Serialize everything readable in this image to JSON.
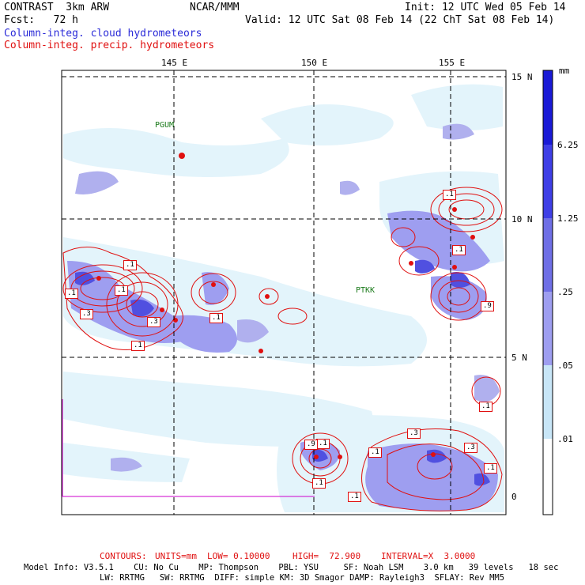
{
  "header": {
    "model_name": "CONTRAST  3km ARW",
    "org": "NCAR/MMM",
    "init": "Init: 12 UTC Wed 05 Feb 14",
    "fcst": "Fcst:   72 h",
    "valid": "Valid: 12 UTC Sat 08 Feb 14 (22 ChT Sat 08 Feb 14)",
    "field_cloud": "Column-integ. cloud hydrometeors",
    "field_precip": "Column-integ. precip. hydrometeors"
  },
  "map": {
    "lon_labels": [
      "145 E",
      "150 E",
      "155 E"
    ],
    "lat_labels": [
      "15 N",
      "10 N",
      "5 N",
      "0"
    ],
    "stations": [
      "PGUM",
      "PTKK"
    ],
    "contour_labels": [
      ".1",
      ".1",
      ".1",
      ".3",
      ".3",
      ".1",
      ".1",
      ".1",
      ".1",
      ".9",
      ".1",
      ".3",
      ".1",
      ".3",
      ".1",
      ".1",
      ".1",
      ".9",
      ".1"
    ]
  },
  "colorbar": {
    "unit": "mm",
    "levels": [
      "6.25",
      "1.25",
      ".25",
      ".05",
      ".01"
    ],
    "colors": [
      "#1a1ad6",
      "#3f3fe6",
      "#6f6fe6",
      "#9e9ef0",
      "#c8e6f7",
      "#e8f7fb",
      "#ffffff"
    ]
  },
  "footer": {
    "contours_label": "CONTOURS:",
    "units": "UNITS=mm",
    "low": "LOW= 0.10000",
    "high": "HIGH=  72.900",
    "interval": "INTERVAL=X  3.0000",
    "line1": "Model Info: V3.5.1    CU: No Cu    MP: Thompson    PBL: YSU     SF: Noah LSM    3.0 km   39 levels   18 sec",
    "line2": "LW: RRTMG   SW: RRTMG  DIFF: simple KM: 3D Smagor DAMP: Rayleigh3  SFLAY: Rev MM5"
  }
}
